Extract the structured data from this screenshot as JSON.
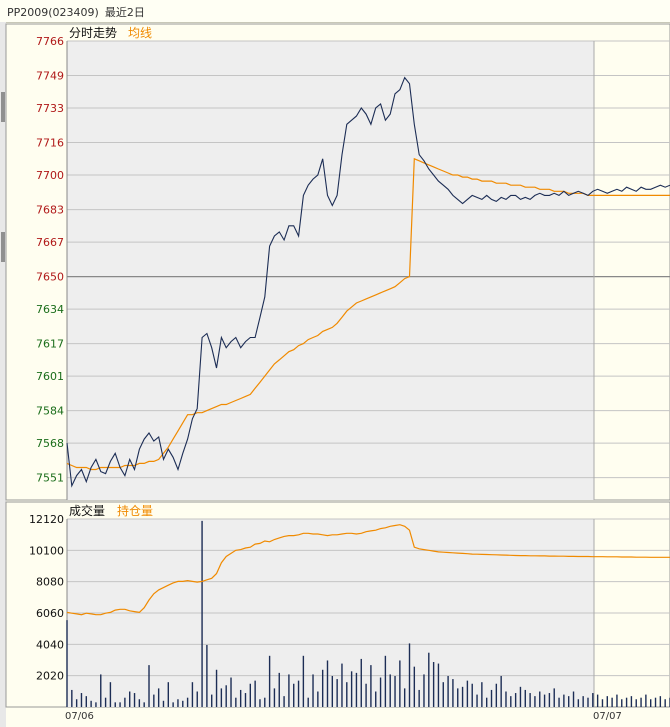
{
  "window": {
    "symbol": "PP2009",
    "code": "(023409)",
    "period": "最近2日"
  },
  "colors": {
    "price": "#1c2d55",
    "avg": "#f08a00",
    "up": "#b01818",
    "down": "#1a6d1a",
    "volume": "#1c2d55",
    "oi": "#f08a00"
  },
  "chart_data": [
    {
      "type": "line",
      "title": "",
      "legend": [
        "分时走势",
        "均线"
      ],
      "yticks": [
        "7766",
        "7749",
        "7733",
        "7716",
        "7700",
        "7683",
        "7667",
        "7650",
        "7634",
        "7617",
        "7601",
        "7584",
        "7568",
        "7551"
      ],
      "y_tick_values": [
        7766,
        7749,
        7733,
        7716,
        7700,
        7683,
        7667,
        7650,
        7634,
        7617,
        7601,
        7584,
        7568,
        7551
      ],
      "ylim": [
        7540,
        7766
      ],
      "prev_close": 7650,
      "x_labels": [
        "07/06",
        "07/07"
      ],
      "x": [
        0,
        5,
        10,
        15,
        20,
        25,
        30,
        35,
        40,
        45,
        50,
        55,
        60,
        65,
        70,
        75,
        80,
        85,
        90,
        95,
        100,
        105,
        110,
        115,
        120,
        125,
        130,
        135,
        140,
        145,
        150,
        155,
        160,
        165,
        170,
        175,
        180,
        185,
        190,
        195,
        200,
        205,
        210,
        215,
        220,
        225,
        230,
        235,
        240,
        245,
        250,
        255,
        260,
        265,
        270,
        275,
        280,
        285,
        290,
        295,
        300,
        305,
        310,
        315,
        320,
        325,
        330,
        335,
        340,
        345,
        350,
        355,
        360,
        365,
        370,
        375,
        380,
        385,
        390,
        395,
        400,
        405,
        410,
        415,
        420,
        425,
        430,
        435,
        440,
        445,
        450,
        455,
        460,
        465,
        470,
        475,
        480,
        485,
        490,
        495,
        500,
        505,
        510,
        515,
        520,
        525,
        530,
        535,
        540,
        545,
        550,
        555,
        560,
        565,
        570,
        575,
        580,
        585,
        590,
        595,
        600,
        605,
        610,
        615,
        620,
        625
      ],
      "series": [
        {
          "name": "分时走势",
          "values": [
            7568,
            7547,
            7552,
            7555,
            7549,
            7556,
            7560,
            7554,
            7553,
            7559,
            7563,
            7556,
            7552,
            7560,
            7555,
            7565,
            7570,
            7573,
            7569,
            7571,
            7560,
            7565,
            7561,
            7555,
            7563,
            7570,
            7580,
            7585,
            7620,
            7622,
            7615,
            7605,
            7620,
            7615,
            7618,
            7620,
            7615,
            7618,
            7620,
            7620,
            7630,
            7640,
            7665,
            7670,
            7672,
            7668,
            7675,
            7675,
            7670,
            7690,
            7695,
            7698,
            7700,
            7708,
            7690,
            7685,
            7690,
            7710,
            7725,
            7727,
            7729,
            7733,
            7730,
            7725,
            7733,
            7735,
            7727,
            7730,
            7740,
            7742,
            7748,
            7745,
            7725,
            7710,
            7707,
            7703,
            7700,
            7697,
            7695,
            7693,
            7690,
            7688,
            7686,
            7688,
            7690,
            7689,
            7688,
            7690,
            7688,
            7687,
            7689,
            7688,
            7690,
            7690,
            7688,
            7689,
            7688,
            7690,
            7691,
            7690,
            7690,
            7691,
            7690,
            7692,
            7690,
            7691,
            7692,
            7691,
            7690,
            7692,
            7693,
            7692,
            7691,
            7692,
            7693,
            7692,
            7694,
            7693,
            7692,
            7694,
            7693,
            7693,
            7694,
            7695,
            7694,
            7695
          ]
        },
        {
          "name": "均线",
          "values": [
            7558,
            7557,
            7556,
            7556,
            7556,
            7555,
            7555,
            7556,
            7556,
            7556,
            7556,
            7556,
            7557,
            7557,
            7557,
            7558,
            7558,
            7559,
            7559,
            7560,
            7563,
            7566,
            7570,
            7574,
            7578,
            7582,
            7582,
            7583,
            7583,
            7584,
            7585,
            7586,
            7587,
            7587,
            7588,
            7589,
            7590,
            7591,
            7592,
            7595,
            7598,
            7601,
            7604,
            7607,
            7609,
            7611,
            7613,
            7614,
            7616,
            7617,
            7619,
            7620,
            7621,
            7623,
            7624,
            7625,
            7627,
            7630,
            7633,
            7635,
            7637,
            7638,
            7639,
            7640,
            7641,
            7642,
            7643,
            7644,
            7645,
            7647,
            7649,
            7650,
            7708,
            7707,
            7706,
            7705,
            7704,
            7703,
            7702,
            7701,
            7700,
            7700,
            7699,
            7699,
            7698,
            7698,
            7697,
            7697,
            7697,
            7696,
            7696,
            7696,
            7695,
            7695,
            7695,
            7694,
            7694,
            7694,
            7693,
            7693,
            7693,
            7692,
            7692,
            7692,
            7691,
            7691,
            7691,
            7691,
            7690,
            7690,
            7690,
            7690,
            7690,
            7690,
            7690,
            7690,
            7690,
            7690,
            7690,
            7690,
            7690,
            7690,
            7690,
            7690,
            7690,
            7690
          ]
        }
      ]
    },
    {
      "type": "bar",
      "title": "",
      "legend": [
        "成交量",
        "持仓量"
      ],
      "yticks": [
        "12120",
        "10100",
        "8080",
        "6060",
        "4040",
        "2020"
      ],
      "y_tick_values": [
        12120,
        10100,
        8080,
        6060,
        4040,
        2020
      ],
      "ylim": [
        0,
        12120
      ],
      "x_labels": [
        "07/06",
        "07/07"
      ],
      "x": [
        0,
        5,
        10,
        15,
        20,
        25,
        30,
        35,
        40,
        45,
        50,
        55,
        60,
        65,
        70,
        75,
        80,
        85,
        90,
        95,
        100,
        105,
        110,
        115,
        120,
        125,
        130,
        135,
        140,
        145,
        150,
        155,
        160,
        165,
        170,
        175,
        180,
        185,
        190,
        195,
        200,
        205,
        210,
        215,
        220,
        225,
        230,
        235,
        240,
        245,
        250,
        255,
        260,
        265,
        270,
        275,
        280,
        285,
        290,
        295,
        300,
        305,
        310,
        315,
        320,
        325,
        330,
        335,
        340,
        345,
        350,
        355,
        360,
        365,
        370,
        375,
        380,
        385,
        390,
        395,
        400,
        405,
        410,
        415,
        420,
        425,
        430,
        435,
        440,
        445,
        450,
        455,
        460,
        465,
        470,
        475,
        480,
        485,
        490,
        495,
        500,
        505,
        510,
        515,
        520,
        525,
        530,
        535,
        540,
        545,
        550,
        555,
        560,
        565,
        570,
        575,
        580,
        585,
        590,
        595,
        600,
        605,
        610,
        615,
        620,
        625
      ],
      "series": [
        {
          "name": "成交量",
          "values": [
            5600,
            1100,
            500,
            900,
            700,
            400,
            300,
            2100,
            600,
            1600,
            300,
            300,
            600,
            1000,
            900,
            500,
            300,
            2700,
            800,
            1200,
            400,
            1600,
            300,
            500,
            400,
            600,
            1600,
            1000,
            12000,
            4000,
            800,
            2400,
            1200,
            1400,
            1900,
            600,
            1100,
            900,
            1500,
            1700,
            500,
            600,
            3300,
            1200,
            2200,
            700,
            2100,
            1500,
            1700,
            3300,
            600,
            2100,
            1000,
            2400,
            3000,
            2000,
            1800,
            2800,
            1600,
            2300,
            2200,
            3100,
            1500,
            2700,
            1000,
            1900,
            3300,
            2100,
            2000,
            3000,
            1200,
            4100,
            2600,
            1100,
            2100,
            3500,
            2900,
            2800,
            1600,
            2000,
            1800,
            1200,
            1300,
            1700,
            1500,
            800,
            1600,
            600,
            1100,
            1500,
            2000,
            1000,
            700,
            900,
            1300,
            1100,
            900,
            700,
            1000,
            800,
            900,
            1200,
            600,
            800,
            700,
            1000,
            500,
            700,
            600,
            900,
            800,
            500,
            700,
            600,
            800,
            500,
            600,
            700,
            500,
            600,
            800,
            500,
            600,
            700,
            500,
            600
          ]
        },
        {
          "name": "持仓量",
          "values": [
            6100,
            6050,
            6000,
            5950,
            6050,
            6000,
            5950,
            5950,
            6050,
            6100,
            6250,
            6300,
            6300,
            6200,
            6150,
            6100,
            6400,
            6900,
            7300,
            7550,
            7700,
            7850,
            8000,
            8100,
            8100,
            8150,
            8100,
            8050,
            8100,
            8200,
            8300,
            8600,
            9300,
            9700,
            9900,
            10100,
            10150,
            10250,
            10300,
            10500,
            10550,
            10700,
            10650,
            10800,
            10900,
            11000,
            11050,
            11050,
            11100,
            11200,
            11200,
            11150,
            11150,
            11100,
            11050,
            11100,
            11100,
            11150,
            11200,
            11200,
            11150,
            11200,
            11300,
            11350,
            11400,
            11500,
            11550,
            11650,
            11700,
            11750,
            11650,
            11400,
            10300,
            10200,
            10150,
            10100,
            10050,
            10000,
            9980,
            9960,
            9940,
            9920,
            9900,
            9880,
            9860,
            9850,
            9840,
            9830,
            9820,
            9810,
            9800,
            9790,
            9780,
            9770,
            9760,
            9760,
            9750,
            9750,
            9740,
            9740,
            9730,
            9730,
            9720,
            9720,
            9710,
            9710,
            9700,
            9700,
            9700,
            9690,
            9690,
            9690,
            9680,
            9680,
            9680,
            9670,
            9670,
            9670,
            9660,
            9660,
            9660,
            9650,
            9650,
            9650,
            9650,
            9650
          ]
        }
      ]
    }
  ]
}
